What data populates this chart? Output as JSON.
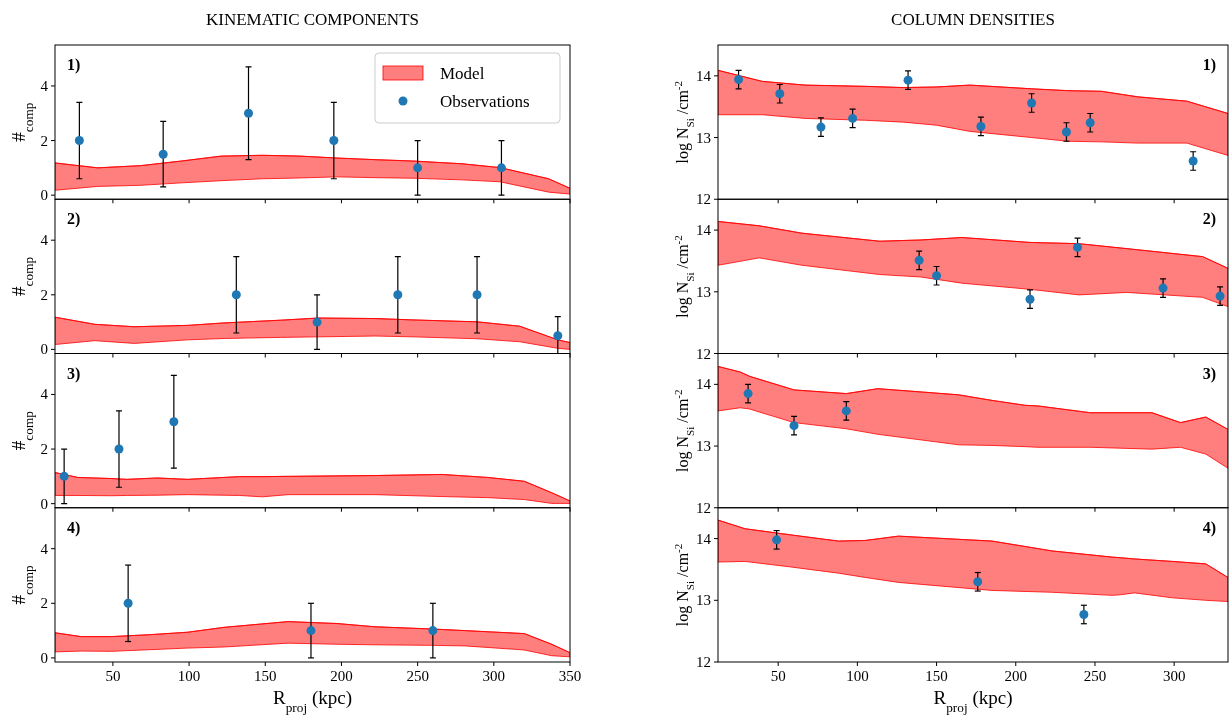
{
  "chart_data": [
    {
      "type": "scatter",
      "title": "KINEMATIC COMPONENTS",
      "ylabel": "#$_{comp}$",
      "annotations": [
        "1)"
      ],
      "xlim": [
        12,
        350
      ],
      "xticks": [
        50,
        100,
        150,
        200,
        250,
        300,
        350
      ],
      "ylim": [
        -0.15,
        5.5
      ],
      "yticks": [
        0,
        2,
        4
      ],
      "tick_labels": "y",
      "grid": false,
      "legend": "top right",
      "series": [
        {
          "type": "line",
          "name": "Model",
          "color": "#ff0000",
          "x": [
            12,
            40,
            68,
            95,
            121,
            148,
            173,
            197,
            222,
            247,
            279,
            304,
            336,
            350
          ],
          "values": [
            1.18,
            1.0,
            1.08,
            1.25,
            1.43,
            1.46,
            1.43,
            1.36,
            1.3,
            1.25,
            1.15,
            1.01,
            0.6,
            0.25
          ],
          "upper": [
            1.18,
            1.0,
            1.08,
            1.25,
            1.43,
            1.46,
            1.43,
            1.36,
            1.3,
            1.25,
            1.15,
            1.01,
            0.6,
            0.25
          ],
          "lower": [
            0.18,
            0.32,
            0.36,
            0.45,
            0.53,
            0.6,
            0.63,
            0.67,
            0.64,
            0.62,
            0.56,
            0.49,
            0.11,
            0.04
          ]
        },
        {
          "type": "scatter",
          "name": "Observations",
          "marker": "circle",
          "color": "#1f77b4",
          "x": [
            28,
            83,
            139,
            195,
            250,
            305
          ],
          "values": [
            2,
            1.5,
            3,
            2,
            1,
            1
          ],
          "errors": [
            1.4,
            1.2,
            1.7,
            1.4,
            1,
            1
          ]
        }
      ]
    },
    {
      "type": "scatter",
      "ylabel": "#$_{comp}$",
      "annotations": [
        "2)"
      ],
      "xlim": [
        12,
        350
      ],
      "xticks": [
        50,
        100,
        150,
        200,
        250,
        300,
        350
      ],
      "ylim": [
        -0.15,
        5.5
      ],
      "yticks": [
        0,
        2,
        4
      ],
      "tick_labels": "y",
      "grid": false,
      "series": [
        {
          "type": "line",
          "color": "#ff0000",
          "x": [
            12,
            38,
            64,
            99,
            123,
            160,
            185,
            222,
            247,
            289,
            317,
            342,
            350
          ],
          "values": [
            1.18,
            0.92,
            0.83,
            0.88,
            0.97,
            1.07,
            1.15,
            1.13,
            1.08,
            1.01,
            0.85,
            0.35,
            0.25
          ],
          "upper": [
            1.18,
            0.92,
            0.83,
            0.88,
            0.97,
            1.07,
            1.15,
            1.13,
            1.08,
            1.01,
            0.85,
            0.35,
            0.25
          ],
          "lower": [
            0.18,
            0.32,
            0.22,
            0.35,
            0.4,
            0.44,
            0.46,
            0.49,
            0.46,
            0.39,
            0.28,
            0.04,
            0
          ]
        },
        {
          "type": "scatter",
          "marker": "circle",
          "color": "#1f77b4",
          "x": [
            131,
            184,
            237,
            289,
            342
          ],
          "values": [
            2,
            1,
            2,
            2,
            0.5
          ],
          "errors": [
            1.4,
            1,
            1.4,
            1.4,
            0.7
          ]
        }
      ]
    },
    {
      "type": "scatter",
      "ylabel": "#$_{comp}$",
      "annotations": [
        "3)"
      ],
      "xlim": [
        12,
        350
      ],
      "xticks": [
        50,
        100,
        150,
        200,
        250,
        300,
        350
      ],
      "ylim": [
        -0.15,
        5.5
      ],
      "yticks": [
        0,
        2,
        4
      ],
      "tick_labels": "y",
      "grid": false,
      "series": [
        {
          "type": "line",
          "color": "#ff0000",
          "x": [
            12,
            27,
            49,
            59,
            79,
            99,
            133,
            148,
            165,
            222,
            266,
            296,
            320,
            338,
            350
          ],
          "values": [
            1.14,
            0.96,
            0.92,
            0.89,
            0.94,
            0.89,
            0.99,
            0.99,
            1.0,
            1.03,
            1.07,
            0.96,
            0.82,
            0.4,
            0.1
          ],
          "upper": [
            1.14,
            0.96,
            0.92,
            0.89,
            0.94,
            0.89,
            0.99,
            0.99,
            1.0,
            1.03,
            1.07,
            0.96,
            0.82,
            0.4,
            0.1
          ],
          "lower": [
            0.3,
            0.3,
            0.29,
            0.3,
            0.31,
            0.33,
            0.3,
            0.25,
            0.33,
            0.33,
            0.26,
            0.22,
            0.15,
            0.01,
            0.01
          ]
        },
        {
          "type": "scatter",
          "marker": "circle",
          "color": "#1f77b4",
          "x": [
            18,
            54,
            90
          ],
          "values": [
            1,
            2,
            3
          ],
          "errors": [
            1,
            1.4,
            1.7
          ]
        }
      ]
    },
    {
      "type": "scatter",
      "xlabel": "R$_{proj}$ (kpc)",
      "ylabel": "#$_{comp}$",
      "annotations": [
        "4)"
      ],
      "xlim": [
        12,
        350
      ],
      "xticks": [
        50,
        100,
        150,
        200,
        250,
        300,
        350
      ],
      "ylim": [
        -0.15,
        5.5
      ],
      "yticks": [
        0,
        2,
        4
      ],
      "grid": false,
      "series": [
        {
          "type": "line",
          "color": "#ff0000",
          "x": [
            12,
            29,
            49,
            74,
            99,
            123,
            165,
            197,
            222,
            259,
            281,
            320,
            338,
            350
          ],
          "values": [
            0.92,
            0.78,
            0.78,
            0.85,
            0.94,
            1.12,
            1.33,
            1.26,
            1.14,
            1.06,
            1.0,
            0.89,
            0.5,
            0.19
          ],
          "upper": [
            0.92,
            0.78,
            0.78,
            0.85,
            0.94,
            1.12,
            1.33,
            1.26,
            1.14,
            1.06,
            1.0,
            0.89,
            0.5,
            0.19
          ],
          "lower": [
            0.22,
            0.25,
            0.24,
            0.3,
            0.36,
            0.4,
            0.54,
            0.5,
            0.48,
            0.46,
            0.44,
            0.29,
            0.08,
            0.04
          ]
        },
        {
          "type": "scatter",
          "marker": "circle",
          "color": "#1f77b4",
          "x": [
            60,
            180,
            260
          ],
          "values": [
            2,
            1,
            1
          ],
          "errors": [
            1.4,
            1,
            1
          ]
        }
      ]
    },
    {
      "type": "scatter",
      "title": "COLUMN DENSITIES",
      "ylabel": "log N$_{Si}$/cm$^{-2}$",
      "annotations": [
        "1)"
      ],
      "xlim": [
        12,
        334
      ],
      "xticks": [
        50,
        100,
        150,
        200,
        250,
        300
      ],
      "ylim": [
        12,
        14.5
      ],
      "yticks": [
        12,
        13,
        14
      ],
      "tick_labels": "y",
      "grid": false,
      "series": [
        {
          "type": "line",
          "color": "#ff0000",
          "x": [
            12,
            40,
            67,
            105,
            129,
            150,
            171,
            210,
            233,
            254,
            277,
            308,
            334
          ],
          "values": [
            14.09,
            13.91,
            13.85,
            13.83,
            13.81,
            13.82,
            13.85,
            13.79,
            13.76,
            13.75,
            13.66,
            13.59,
            13.39
          ],
          "upper": [
            14.09,
            13.91,
            13.85,
            13.83,
            13.81,
            13.82,
            13.85,
            13.79,
            13.76,
            13.75,
            13.66,
            13.59,
            13.39
          ],
          "lower": [
            13.37,
            13.37,
            13.31,
            13.28,
            13.25,
            13.2,
            13.1,
            13.0,
            12.94,
            12.93,
            12.91,
            12.91,
            12.71
          ]
        },
        {
          "type": "scatter",
          "marker": "circle",
          "color": "#1f77b4",
          "x": [
            25,
            51,
            77,
            97,
            132,
            178,
            210,
            232,
            247,
            312
          ],
          "values": [
            13.94,
            13.71,
            13.17,
            13.31,
            13.93,
            13.18,
            13.56,
            13.09,
            13.24,
            12.62
          ],
          "errors": [
            0.15,
            0.15,
            0.15,
            0.15,
            0.15,
            0.15,
            0.15,
            0.15,
            0.15,
            0.15
          ]
        }
      ]
    },
    {
      "type": "scatter",
      "ylabel": "log N$_{Si}$/cm$^{-2}$",
      "annotations": [
        "2)"
      ],
      "xlim": [
        12,
        334
      ],
      "xticks": [
        50,
        100,
        150,
        200,
        250,
        300
      ],
      "ylim": [
        12,
        14.5
      ],
      "yticks": [
        12,
        13,
        14
      ],
      "tick_labels": "y",
      "grid": false,
      "series": [
        {
          "type": "line",
          "color": "#ff0000",
          "x": [
            12,
            38,
            65,
            114,
            140,
            166,
            209,
            240,
            270,
            318,
            334
          ],
          "values": [
            14.14,
            14.07,
            13.95,
            13.82,
            13.84,
            13.88,
            13.8,
            13.78,
            13.7,
            13.57,
            13.38
          ],
          "upper": [
            14.14,
            14.07,
            13.95,
            13.82,
            13.84,
            13.88,
            13.8,
            13.78,
            13.7,
            13.57,
            13.38
          ],
          "lower": [
            13.43,
            13.55,
            13.43,
            13.28,
            13.24,
            13.14,
            13.04,
            12.95,
            12.99,
            12.91,
            12.76
          ]
        },
        {
          "type": "scatter",
          "marker": "circle",
          "color": "#1f77b4",
          "x": [
            139,
            150,
            209,
            239,
            293,
            329
          ],
          "values": [
            13.51,
            13.26,
            12.88,
            13.72,
            13.06,
            12.93
          ],
          "errors": [
            0.15,
            0.15,
            0.15,
            0.15,
            0.15,
            0.15
          ]
        }
      ]
    },
    {
      "type": "scatter",
      "ylabel": "log N$_{Si}$/cm$^{-2}$",
      "annotations": [
        "3)"
      ],
      "xlim": [
        12,
        334
      ],
      "xticks": [
        50,
        100,
        150,
        200,
        250,
        300
      ],
      "ylim": [
        12,
        14.5
      ],
      "yticks": [
        12,
        13,
        14
      ],
      "tick_labels": "y",
      "grid": false,
      "series": [
        {
          "type": "line",
          "color": "#ff0000",
          "x": [
            12,
            26,
            32,
            60,
            93,
            113,
            164,
            185,
            206,
            214,
            247,
            286,
            304,
            320,
            334
          ],
          "values": [
            14.29,
            14.2,
            14.13,
            13.91,
            13.85,
            13.93,
            13.83,
            13.74,
            13.66,
            13.65,
            13.54,
            13.54,
            13.38,
            13.47,
            13.27
          ],
          "upper": [
            14.29,
            14.2,
            14.13,
            13.91,
            13.85,
            13.93,
            13.83,
            13.74,
            13.66,
            13.65,
            13.54,
            13.54,
            13.38,
            13.47,
            13.27
          ],
          "lower": [
            13.57,
            13.62,
            13.6,
            13.38,
            13.28,
            13.19,
            13.02,
            13.01,
            12.99,
            12.98,
            12.98,
            12.95,
            12.98,
            12.87,
            12.64
          ]
        },
        {
          "type": "scatter",
          "marker": "circle",
          "color": "#1f77b4",
          "x": [
            31,
            60,
            93
          ],
          "values": [
            13.85,
            13.33,
            13.57
          ],
          "errors": [
            0.15,
            0.15,
            0.15
          ]
        }
      ]
    },
    {
      "type": "scatter",
      "xlabel": "R$_{proj}$ (kpc)",
      "ylabel": "log N$_{Si}$/cm$^{-2}$",
      "annotations": [
        "4)"
      ],
      "xlim": [
        12,
        334
      ],
      "xticks": [
        50,
        100,
        150,
        200,
        250,
        300
      ],
      "ylim": [
        12,
        14.5
      ],
      "yticks": [
        12,
        13,
        14
      ],
      "grid": false,
      "series": [
        {
          "type": "line",
          "color": "#ff0000",
          "x": [
            12,
            29,
            58,
            88,
            105,
            126,
            185,
            223,
            261,
            266,
            275,
            299,
            320,
            334
          ],
          "values": [
            14.3,
            14.16,
            14.06,
            13.96,
            13.97,
            14.04,
            13.96,
            13.8,
            13.7,
            13.69,
            13.67,
            13.63,
            13.59,
            13.37
          ],
          "upper": [
            14.3,
            14.16,
            14.06,
            13.96,
            13.97,
            14.04,
            13.96,
            13.8,
            13.7,
            13.69,
            13.67,
            13.63,
            13.59,
            13.37
          ],
          "lower": [
            13.62,
            13.63,
            13.54,
            13.44,
            13.37,
            13.29,
            13.16,
            13.13,
            13.08,
            13.09,
            13.12,
            13.04,
            13.0,
            12.98
          ]
        },
        {
          "type": "scatter",
          "marker": "circle",
          "color": "#1f77b4",
          "x": [
            49,
            176,
            243
          ],
          "values": [
            13.98,
            13.3,
            12.77
          ],
          "errors": [
            0.15,
            0.15,
            0.15
          ]
        }
      ]
    }
  ]
}
